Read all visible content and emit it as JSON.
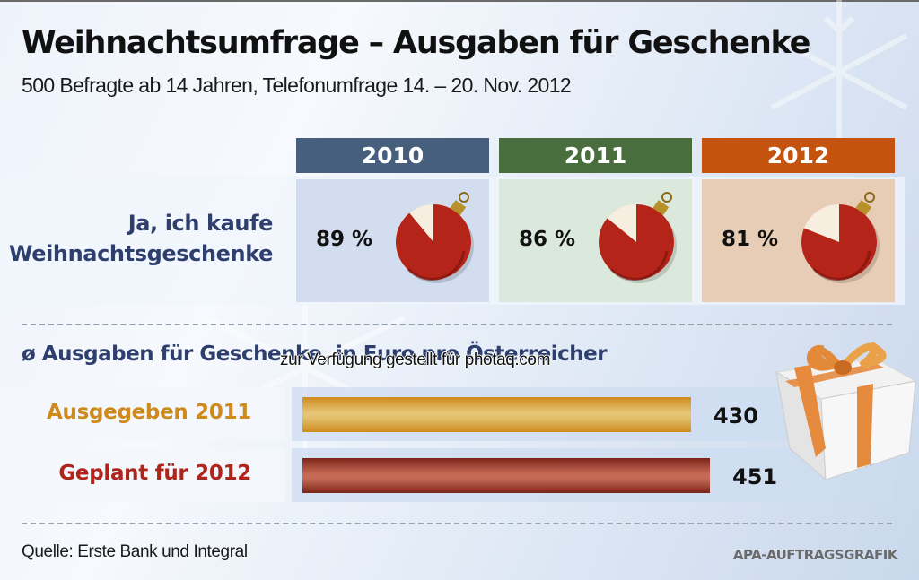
{
  "title": "Weihnachtsumfrage – Ausgaben für Geschenke",
  "subtitle": "500 Befragte ab 14 Jahren, Telefonumfrage 14. – 20. Nov. 2012",
  "watermark": "zur Verfügung gestellt für photaq.com",
  "source": "Quelle: Erste Bank und Integral",
  "credit": "APA-AUFTRAGSGRAFIK",
  "colors": {
    "header_2010": "#455f7d",
    "header_2011": "#4a6d3e",
    "header_2012": "#c4530f",
    "cell_2010": "#d2def0",
    "cell_2011": "#dbe8dc",
    "cell_2012": "#e8cdb6",
    "ornament_red": "#b52418",
    "ornament_slice": "#f6efe0",
    "label_blue": "#2e3f6e",
    "bar_2011": "#e2b14e",
    "bar_2012": "#b4503f",
    "label_2011": "#cf8a1d",
    "label_2012": "#b0241b"
  },
  "chart_data": [
    {
      "type": "pie",
      "title": "Ja, ich kaufe Weihnachtsgeschenke",
      "row_label_lines": [
        "Ja, ich kaufe",
        "Weihnachtsgeschenke"
      ],
      "categories": [
        "2010",
        "2011",
        "2012"
      ],
      "values": [
        89,
        86,
        81
      ],
      "value_labels": [
        "89 %",
        "86 %",
        "81 %"
      ],
      "unit": "%"
    },
    {
      "type": "bar",
      "orientation": "horizontal",
      "title": "ø Ausgaben für Geschenke, in Euro pro Österreicher",
      "categories": [
        "Ausgegeben 2011",
        "Geplant für 2012"
      ],
      "values": [
        430,
        451
      ],
      "value_labels": [
        "430",
        "451"
      ],
      "unit": "Euro",
      "xlim": [
        0,
        451
      ]
    }
  ]
}
